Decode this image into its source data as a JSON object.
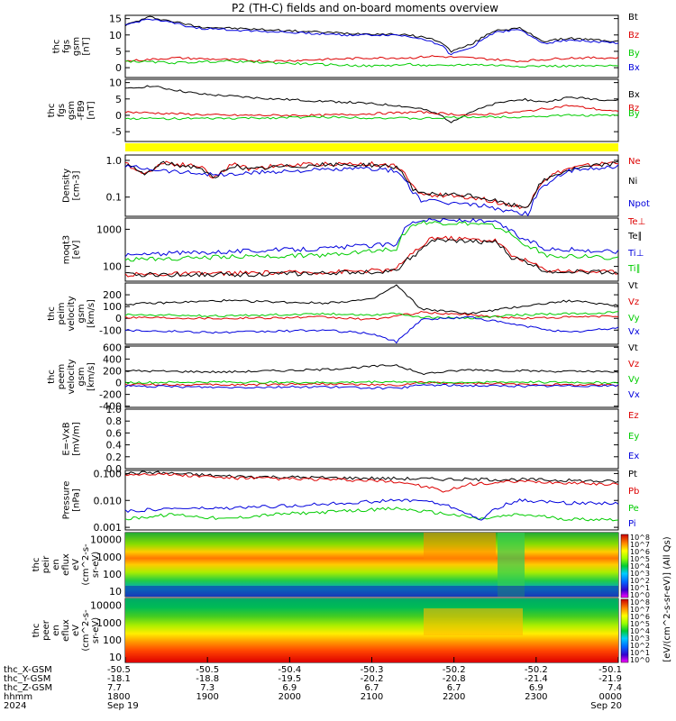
{
  "title": "P2 (TH-C) fields and on-board moments overview",
  "chart_data": [
    {
      "type": "line",
      "panel": "fgs_gsm",
      "ylabel": [
        "thc",
        "fgs",
        "gsm",
        "[nT]"
      ],
      "ylim": [
        -3,
        16
      ],
      "ticks": [
        0,
        5,
        10,
        15
      ],
      "log": false,
      "series": [
        {
          "name": "Bt",
          "color": "#000000",
          "x": [
            0,
            0.05,
            0.15,
            0.3,
            0.45,
            0.55,
            0.6,
            0.64,
            0.66,
            0.7,
            0.75,
            0.8,
            0.85,
            0.9,
            1.0
          ],
          "y": [
            13,
            15.5,
            12.5,
            11.5,
            10.5,
            10.2,
            9.5,
            8,
            5,
            7,
            11.5,
            12,
            8,
            9,
            8
          ]
        },
        {
          "name": "Bz",
          "color": "#dd0000",
          "x": [
            0,
            0.1,
            0.2,
            0.3,
            0.4,
            0.5,
            0.58,
            0.62,
            0.7,
            0.8,
            0.9,
            1.0
          ],
          "y": [
            2,
            3,
            2.5,
            2,
            2.5,
            3,
            3,
            3.5,
            3,
            2,
            3,
            3
          ]
        },
        {
          "name": "By",
          "color": "#00cc00",
          "x": [
            0,
            0.1,
            0.2,
            0.3,
            0.4,
            0.5,
            0.58,
            0.62,
            0.7,
            0.8,
            0.9,
            1.0
          ],
          "y": [
            2,
            1.5,
            2,
            1.5,
            1,
            0.5,
            1,
            0.5,
            1,
            0.5,
            0.5,
            0.5
          ]
        },
        {
          "name": "Bx",
          "color": "#0000dd",
          "x": [
            0,
            0.05,
            0.15,
            0.3,
            0.45,
            0.55,
            0.6,
            0.64,
            0.66,
            0.7,
            0.75,
            0.8,
            0.85,
            0.9,
            1.0
          ],
          "y": [
            13,
            15,
            12,
            11,
            10,
            10,
            9,
            7,
            4,
            6,
            11,
            11.5,
            7.5,
            8.5,
            7.5
          ]
        }
      ]
    },
    {
      "type": "line",
      "panel": "fgs_gsm_nb",
      "ylabel": [
        "thc",
        "fgs",
        "gsm",
        "-FB9",
        "[nT]"
      ],
      "ylim": [
        -8,
        11
      ],
      "ticks": [
        -5,
        0,
        5,
        10
      ],
      "log": false,
      "series": [
        {
          "name": "Bx",
          "color": "#000000",
          "x": [
            0,
            0.05,
            0.15,
            0.3,
            0.45,
            0.55,
            0.6,
            0.64,
            0.66,
            0.7,
            0.75,
            0.8,
            0.85,
            0.9,
            1.0
          ],
          "y": [
            8,
            9,
            6.5,
            5,
            4,
            3,
            2,
            0,
            -2,
            1,
            3.5,
            5,
            4,
            5.5,
            4.5
          ]
        },
        {
          "name": "Bz",
          "color": "#dd0000",
          "x": [
            0,
            0.2,
            0.4,
            0.6,
            0.7,
            0.8,
            0.9,
            1.0
          ],
          "y": [
            1,
            0,
            0,
            1,
            0,
            1,
            3,
            1
          ]
        },
        {
          "name": "By",
          "color": "#00cc00",
          "x": [
            0,
            0.2,
            0.4,
            0.6,
            0.7,
            0.8,
            0.9,
            1.0
          ],
          "y": [
            -1,
            -1,
            -0.5,
            -1,
            -0.5,
            -0.5,
            0,
            0
          ]
        }
      ]
    },
    {
      "type": "line",
      "panel": "density",
      "ylabel": [
        "Density",
        "[cm-3]"
      ],
      "ylim": [
        0.03,
        1.4
      ],
      "ticks": [
        0.1,
        1.0
      ],
      "tick_labels": [
        "0.1",
        "1.0"
      ],
      "log": true,
      "series": [
        {
          "name": "Ne",
          "color": "#dd0000",
          "x": [
            0,
            0.04,
            0.08,
            0.1,
            0.15,
            0.18,
            0.22,
            0.25,
            0.3,
            0.4,
            0.5,
            0.55,
            0.58,
            0.6,
            0.7,
            0.78,
            0.82,
            0.85,
            0.9,
            1.0
          ],
          "y": [
            0.8,
            0.4,
            0.9,
            0.8,
            0.7,
            0.3,
            0.8,
            0.6,
            0.7,
            0.8,
            0.8,
            0.7,
            0.2,
            0.12,
            0.1,
            0.06,
            0.05,
            0.3,
            0.6,
            0.9
          ]
        },
        {
          "name": "Ni",
          "color": "#000000",
          "x": [
            0,
            0.04,
            0.08,
            0.1,
            0.15,
            0.18,
            0.22,
            0.25,
            0.3,
            0.4,
            0.5,
            0.55,
            0.58,
            0.6,
            0.7,
            0.78,
            0.82,
            0.85,
            0.9,
            1.0
          ],
          "y": [
            0.75,
            0.4,
            0.85,
            0.75,
            0.65,
            0.28,
            0.75,
            0.55,
            0.65,
            0.75,
            0.75,
            0.65,
            0.18,
            0.12,
            0.11,
            0.06,
            0.055,
            0.28,
            0.55,
            0.85
          ]
        },
        {
          "name": "Npot",
          "color": "#0000dd",
          "x": [
            0,
            0.1,
            0.2,
            0.3,
            0.5,
            0.55,
            0.58,
            0.6,
            0.65,
            0.72,
            0.78,
            0.82,
            0.85,
            0.9,
            1.0
          ],
          "y": [
            0.7,
            0.5,
            0.4,
            0.5,
            0.6,
            0.5,
            0.15,
            0.08,
            0.07,
            0.06,
            0.04,
            0.035,
            0.2,
            0.5,
            0.7
          ]
        }
      ]
    },
    {
      "type": "line",
      "panel": "temperature",
      "ylabel": [
        "moqt3",
        "[eV]"
      ],
      "ylim": [
        40,
        2000
      ],
      "ticks": [
        100,
        1000
      ],
      "tick_labels": [
        "100",
        "1000"
      ],
      "log": true,
      "series": [
        {
          "name": "Te⊥",
          "color": "#dd0000",
          "x": [
            0,
            0.2,
            0.4,
            0.55,
            0.6,
            0.62,
            0.75,
            0.78,
            0.85,
            1.0
          ],
          "y": [
            60,
            65,
            70,
            80,
            300,
            600,
            500,
            200,
            80,
            70
          ]
        },
        {
          "name": "Te∥",
          "color": "#000000",
          "x": [
            0,
            0.2,
            0.4,
            0.55,
            0.6,
            0.62,
            0.75,
            0.78,
            0.85,
            1.0
          ],
          "y": [
            60,
            60,
            65,
            75,
            250,
            500,
            450,
            180,
            75,
            70
          ]
        },
        {
          "name": "Ti⊥",
          "color": "#0000dd",
          "x": [
            0,
            0.2,
            0.4,
            0.55,
            0.58,
            0.6,
            0.7,
            0.75,
            0.8,
            0.85,
            1.0
          ],
          "y": [
            200,
            250,
            300,
            400,
            1500,
            1800,
            1700,
            1500,
            600,
            300,
            250
          ]
        },
        {
          "name": "Ti∥",
          "color": "#00cc00",
          "x": [
            0,
            0.2,
            0.4,
            0.55,
            0.58,
            0.6,
            0.7,
            0.75,
            0.8,
            0.85,
            1.0
          ],
          "y": [
            150,
            180,
            200,
            300,
            1200,
            1500,
            1400,
            1200,
            450,
            200,
            170
          ]
        }
      ]
    },
    {
      "type": "line",
      "panel": "peim_velocity",
      "ylabel": [
        "thc",
        "peim",
        "velocity",
        "gsm",
        "[km/s]"
      ],
      "ylim": [
        -220,
        300
      ],
      "ticks": [
        -100,
        0,
        100,
        200
      ],
      "log": false,
      "series": [
        {
          "name": "Vt",
          "color": "#000000",
          "x": [
            0,
            0.2,
            0.4,
            0.5,
            0.55,
            0.6,
            0.7,
            0.8,
            0.9,
            1.0
          ],
          "y": [
            120,
            150,
            130,
            160,
            280,
            80,
            40,
            100,
            150,
            110
          ]
        },
        {
          "name": "Vz",
          "color": "#dd0000",
          "x": [
            0,
            0.2,
            0.4,
            0.5,
            0.55,
            0.6,
            0.7,
            0.8,
            0.9,
            1.0
          ],
          "y": [
            10,
            0,
            10,
            -10,
            20,
            50,
            30,
            0,
            10,
            20
          ]
        },
        {
          "name": "Vy",
          "color": "#00cc00",
          "x": [
            0,
            0.2,
            0.4,
            0.5,
            0.55,
            0.6,
            0.7,
            0.8,
            0.9,
            1.0
          ],
          "y": [
            30,
            20,
            40,
            30,
            40,
            10,
            0,
            30,
            40,
            50
          ]
        },
        {
          "name": "Vx",
          "color": "#0000dd",
          "x": [
            0,
            0.2,
            0.4,
            0.5,
            0.55,
            0.6,
            0.7,
            0.8,
            0.9,
            1.0
          ],
          "y": [
            -100,
            -120,
            -100,
            -130,
            -200,
            -10,
            10,
            -60,
            -120,
            -80
          ]
        }
      ]
    },
    {
      "type": "line",
      "panel": "peem_velocity",
      "ylabel": [
        "thc",
        "peem",
        "velocity",
        "gsm",
        "[km/s]"
      ],
      "ylim": [
        -420,
        620
      ],
      "ticks": [
        -400,
        -200,
        0,
        200,
        400,
        600
      ],
      "log": false,
      "series": [
        {
          "name": "Vt",
          "color": "#000000",
          "x": [
            0,
            0.2,
            0.4,
            0.55,
            0.6,
            0.7,
            0.8,
            1.0
          ],
          "y": [
            200,
            180,
            220,
            300,
            150,
            220,
            200,
            180
          ]
        },
        {
          "name": "Vz",
          "color": "#dd0000",
          "x": [
            0,
            0.2,
            0.4,
            0.55,
            0.6,
            0.8,
            1.0
          ],
          "y": [
            -30,
            -40,
            -20,
            -50,
            0,
            -30,
            -40
          ]
        },
        {
          "name": "Vy",
          "color": "#00cc00",
          "x": [
            0,
            0.2,
            0.4,
            0.55,
            0.6,
            0.8,
            1.0
          ],
          "y": [
            0,
            10,
            0,
            20,
            0,
            10,
            0
          ]
        },
        {
          "name": "Vx",
          "color": "#0000dd",
          "x": [
            0,
            0.2,
            0.4,
            0.55,
            0.6,
            0.8,
            1.0
          ],
          "y": [
            -60,
            -80,
            -70,
            -100,
            -40,
            -60,
            -50
          ]
        }
      ]
    },
    {
      "type": "line",
      "panel": "efield",
      "ylabel": [
        "E=-VxB",
        "[mV/m]"
      ],
      "ylim": [
        0,
        1
      ],
      "ticks": [
        0,
        0.2,
        0.4,
        0.6,
        0.8,
        1.0
      ],
      "tick_labels": [
        "0.0",
        "0.2",
        "0.4",
        "0.6",
        "0.8",
        "1.0"
      ],
      "log": false,
      "series": [
        {
          "name": "Ez",
          "color": "#dd0000",
          "x": [],
          "y": []
        },
        {
          "name": "Ey",
          "color": "#00cc00",
          "x": [],
          "y": []
        },
        {
          "name": "Ex",
          "color": "#0000dd",
          "x": [],
          "y": []
        }
      ]
    },
    {
      "type": "line",
      "panel": "pressure",
      "ylabel": [
        "Pressure",
        "[nPa]"
      ],
      "ylim": [
        0.0008,
        0.13
      ],
      "ticks": [
        0.001,
        0.01,
        0.1
      ],
      "tick_labels": [
        "0.001",
        "0.010",
        "0.100"
      ],
      "log": true,
      "series": [
        {
          "name": "Pt",
          "color": "#000000",
          "x": [
            0,
            0.05,
            0.2,
            0.4,
            0.55,
            0.7,
            0.8,
            1.0
          ],
          "y": [
            0.1,
            0.11,
            0.08,
            0.07,
            0.065,
            0.06,
            0.06,
            0.05
          ]
        },
        {
          "name": "Pb",
          "color": "#dd0000",
          "x": [
            0,
            0.05,
            0.2,
            0.4,
            0.55,
            0.65,
            0.7,
            0.8,
            1.0
          ],
          "y": [
            0.09,
            0.1,
            0.07,
            0.06,
            0.05,
            0.02,
            0.04,
            0.05,
            0.04
          ]
        },
        {
          "name": "Pe",
          "color": "#00cc00",
          "x": [
            0,
            0.1,
            0.2,
            0.3,
            0.45,
            0.55,
            0.6,
            0.72,
            0.8,
            0.9,
            1.0
          ],
          "y": [
            0.002,
            0.003,
            0.002,
            0.003,
            0.004,
            0.005,
            0.004,
            0.002,
            0.003,
            0.002,
            0.002
          ]
        },
        {
          "name": "Pi",
          "color": "#0000dd",
          "x": [
            0,
            0.1,
            0.2,
            0.3,
            0.45,
            0.55,
            0.6,
            0.72,
            0.8,
            0.9,
            1.0
          ],
          "y": [
            0.004,
            0.005,
            0.005,
            0.006,
            0.008,
            0.01,
            0.01,
            0.0015,
            0.01,
            0.008,
            0.008
          ]
        }
      ]
    },
    {
      "type": "heatmap",
      "panel": "peir_spectrum",
      "ylabel": [
        "thc",
        "peir",
        "en",
        "eflux",
        "eV",
        "(cm^2-s-",
        "sr-eV)"
      ],
      "ylim": [
        5,
        25000
      ],
      "ticks": [
        10,
        100,
        1000,
        10000
      ],
      "tick_labels": [
        "10",
        "100",
        "1000",
        "10000"
      ],
      "log": true
    },
    {
      "type": "heatmap",
      "panel": "peer_spectrum",
      "ylabel": [
        "thc",
        "peer",
        "en",
        "eflux",
        "eV",
        "(cm^2-s-",
        "sr-eV)"
      ],
      "ylim": [
        5,
        25000
      ],
      "ticks": [
        10,
        100,
        1000,
        10000
      ],
      "tick_labels": [
        "10",
        "100",
        "1000",
        "10000"
      ],
      "log": true
    }
  ],
  "colorbar": {
    "label": "[eV/(cm^2-s-sr-eV)] (All Qs)",
    "ticks": [
      "10^8",
      "10^7",
      "10^6",
      "10^5",
      "10^4",
      "10^3",
      "10^2",
      "10^1",
      "10^0",
      "10^8",
      "10^7",
      "10^6",
      "10^5",
      "10^4",
      "10^3",
      "10^2",
      "10^1",
      "10^0"
    ]
  },
  "x_axis": {
    "rows": [
      {
        "label": "thc_X-GSM",
        "values": [
          "-50.5",
          "-50.5",
          "-50.4",
          "-50.3",
          "-50.2",
          "-50.2",
          "-50.1"
        ]
      },
      {
        "label": "thc_Y-GSM",
        "values": [
          "-18.1",
          "-18.8",
          "-19.5",
          "-20.2",
          "-20.8",
          "-21.4",
          "-21.9"
        ]
      },
      {
        "label": "thc_Z-GSM",
        "values": [
          "7.7",
          "7.3",
          "6.9",
          "6.7",
          "6.7",
          "6.9",
          "7.4"
        ]
      },
      {
        "label": "hhmm",
        "values": [
          "1800",
          "1900",
          "2000",
          "2100",
          "2200",
          "2300",
          "0000"
        ]
      },
      {
        "label": "2024",
        "values": [
          "Sep 19",
          "",
          "",
          "",
          "",
          "",
          "Sep 20"
        ]
      }
    ]
  }
}
